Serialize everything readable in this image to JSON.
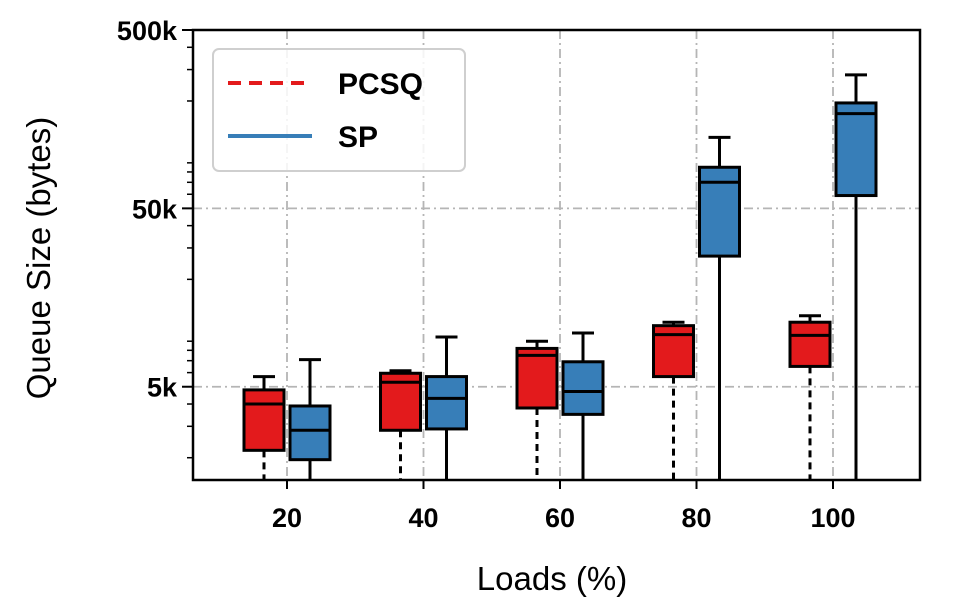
{
  "chart_data": {
    "type": "boxplot",
    "xlabel": "Loads (%)",
    "ylabel": "Queue Size (bytes)",
    "yscale": "log",
    "ylim": [
      1500,
      500000
    ],
    "categories": [
      "20",
      "40",
      "60",
      "80",
      "100"
    ],
    "yticks": [
      {
        "value": 5000,
        "label": "5k"
      },
      {
        "value": 50000,
        "label": "50k"
      },
      {
        "value": 500000,
        "label": "500k"
      }
    ],
    "grid": true,
    "legend": {
      "position": "top-left"
    },
    "series": [
      {
        "name": "PCSQ",
        "color": "#e31a1c",
        "line_style": "dashed",
        "boxes": [
          {
            "whislo": 1500,
            "q1": 2200,
            "med": 4000,
            "q3": 4800,
            "whishi": 5700
          },
          {
            "whislo": 1500,
            "q1": 2850,
            "med": 5300,
            "q3": 5950,
            "whishi": 6150
          },
          {
            "whislo": 1500,
            "q1": 3800,
            "med": 7500,
            "q3": 8200,
            "whishi": 9000
          },
          {
            "whislo": 1500,
            "q1": 5700,
            "med": 9800,
            "q3": 11000,
            "whishi": 11500
          },
          {
            "whislo": 1500,
            "q1": 6500,
            "med": 9700,
            "q3": 11500,
            "whishi": 12500
          }
        ]
      },
      {
        "name": "SP",
        "color": "#377eb8",
        "line_style": "solid",
        "boxes": [
          {
            "whislo": 1500,
            "q1": 1950,
            "med": 2850,
            "q3": 3900,
            "whishi": 7100
          },
          {
            "whislo": 1500,
            "q1": 2900,
            "med": 4300,
            "q3": 5700,
            "whishi": 9500
          },
          {
            "whislo": 1500,
            "q1": 3500,
            "med": 4700,
            "q3": 6900,
            "whishi": 10000
          },
          {
            "whislo": 1500,
            "q1": 27000,
            "med": 70000,
            "q3": 85000,
            "whishi": 125000
          },
          {
            "whislo": 1500,
            "q1": 59000,
            "med": 170000,
            "q3": 195000,
            "whishi": 280000
          }
        ]
      }
    ]
  }
}
